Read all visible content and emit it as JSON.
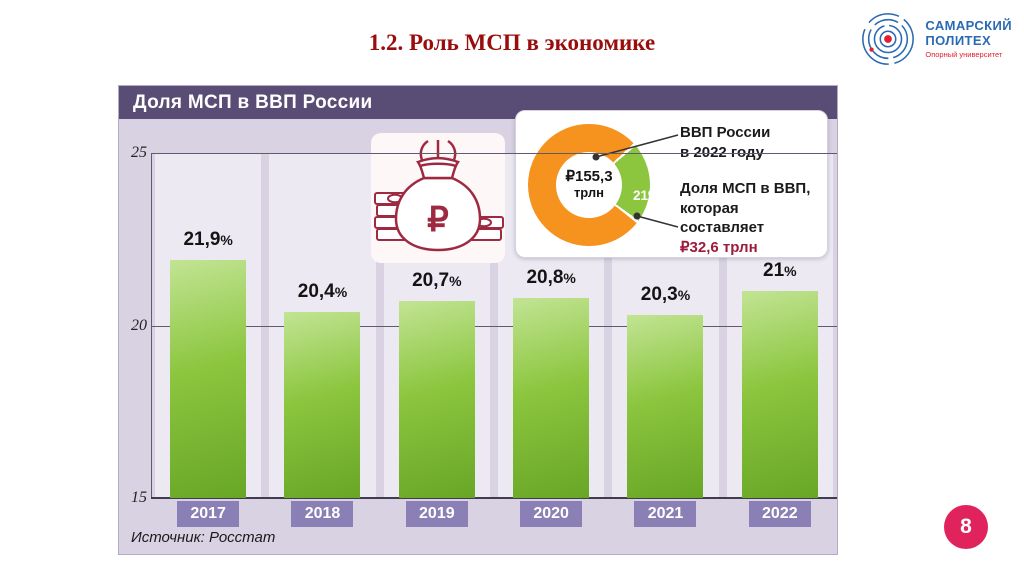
{
  "slide": {
    "title": "1.2. Роль МСП в экономике",
    "page_number": "8"
  },
  "logo": {
    "name_line1": "САМАРСКИЙ",
    "name_line2": "ПОЛИТЕХ",
    "subtitle": "Опорный университет"
  },
  "chart_data": [
    {
      "type": "bar",
      "title": "Доля МСП в ВВП России",
      "categories": [
        "2017",
        "2018",
        "2019",
        "2020",
        "2021",
        "2022"
      ],
      "values": [
        21.9,
        20.4,
        20.7,
        20.8,
        20.3,
        21
      ],
      "value_labels": [
        "21,9",
        "20,4",
        "20,7",
        "20,8",
        "20,3",
        "21"
      ],
      "value_suffix": "%",
      "xlabel": "",
      "ylabel": "",
      "ylim": [
        15,
        25
      ],
      "yticks": [
        "25",
        "20",
        "15"
      ],
      "grid": "horizontal lines at 20 and 25, baseline at 15",
      "legend": "none",
      "source": "Источник: Росстат",
      "colors": {
        "bar": "#8cc63f",
        "panel_bg": "#d8d2e3",
        "header_bg": "#5a4d75",
        "band_bg": "#ece9f3",
        "year_box_bg": "#8b80b5"
      }
    },
    {
      "type": "pie",
      "style": "donut",
      "slices": [
        {
          "label": "Доля МСП в ВВП",
          "value": 21,
          "display": "21%",
          "amount": "₽32,6 трлн",
          "color": "#8cc63f"
        },
        {
          "label": "ВВП России в 2022 году",
          "value": 79,
          "color": "#f6921e"
        }
      ],
      "slice_label": "21%",
      "center_value": "₽155,3",
      "center_unit": "трлн",
      "legend_gdp_line1": "ВВП России",
      "legend_gdp_line2": "в 2022 году",
      "legend_msp_line1": "Доля МСП в ВВП,",
      "legend_msp_line2": "которая составляет",
      "legend_msp_value": "₽32,6 трлн",
      "value_color": "#9e1b3b"
    }
  ],
  "decor": {
    "moneybag_currency": "₽"
  }
}
